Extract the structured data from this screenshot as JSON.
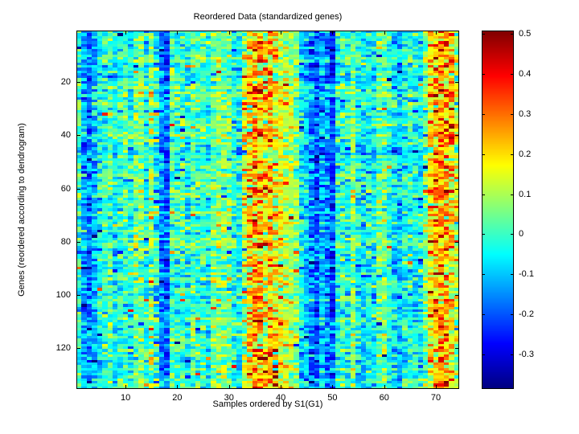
{
  "chart_data": {
    "type": "heatmap",
    "title": "Reordered Data (standardized genes)",
    "xlabel": "Samples ordered by S1(G1)",
    "ylabel": "Genes (reordered according to dendrogram)",
    "n_rows": 135,
    "n_cols": 74,
    "x_ticks": [
      10,
      20,
      30,
      40,
      50,
      60,
      70
    ],
    "y_ticks": [
      20,
      40,
      60,
      80,
      100,
      120
    ],
    "clim": [
      -0.386,
      0.508
    ],
    "colormap": "jet",
    "grid": false,
    "colorbar": {
      "position": "right",
      "tick_values": [
        0.5,
        0.4,
        0.3,
        0.2,
        0.1,
        0,
        -0.1,
        -0.2,
        -0.3
      ],
      "tick_labels": [
        "0.5",
        "0.4",
        "0.3",
        "0.2",
        "0.1",
        "0",
        "-0.1",
        "-0.2",
        "-0.3"
      ],
      "min_color": "#00007f",
      "max_color": "#7f0000"
    },
    "column_bias": [
      -0.02,
      -0.12,
      -0.16,
      -0.11,
      -0.04,
      -0.01,
      0.02,
      -0.05,
      -0.02,
      0.01,
      -0.04,
      0.03,
      0.05,
      -0.03,
      0.07,
      -0.03,
      -0.15,
      -0.2,
      0.02,
      -0.02,
      0.01,
      -0.05,
      0.03,
      -0.01,
      0,
      -0.04,
      0.05,
      0.08,
      0.06,
      0.04,
      -0.02,
      -0.05,
      0.1,
      0.2,
      0.24,
      0.22,
      0.18,
      0.22,
      0.16,
      0.14,
      0.12,
      0.1,
      0.06,
      -0.07,
      -0.09,
      -0.16,
      -0.21,
      -0.12,
      -0.17,
      -0.21,
      -0.03,
      0,
      -0.03,
      0.06,
      -0.04,
      -0.08,
      -0.04,
      -0.06,
      0.04,
      0.05,
      -0.01,
      -0.06,
      -0.1,
      -0.05,
      -0.02,
      -0.04,
      -0.06,
      0.04,
      0.18,
      0.22,
      0.26,
      0.25,
      0.2,
      0.1
    ],
    "high_variance_columns": [
      15,
      16,
      33,
      34,
      35,
      36,
      37,
      38,
      39,
      69,
      70,
      71,
      72,
      73,
      74
    ],
    "noise_sd": 0.07,
    "noise_sd_high": 0.105,
    "row_bias_sd": 0.025,
    "spike_probability": 0.02,
    "seed": 7,
    "background_color": "#ffffff",
    "axis_color": "#000000"
  }
}
